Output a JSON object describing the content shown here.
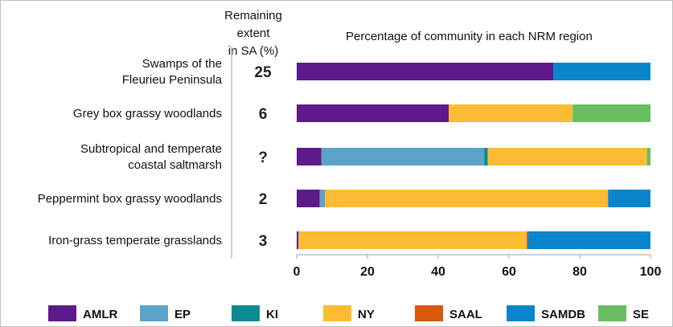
{
  "headers": {
    "remaining_line1": "Remaining extent",
    "remaining_line2": "in SA (%)",
    "percentage": "Percentage of community in each NRM region"
  },
  "chart_data": {
    "type": "bar",
    "orientation": "horizontal",
    "stacked": true,
    "categories": [
      [
        "Swamps of the",
        "Fleurieu Peninsula"
      ],
      [
        "Grey box grassy woodlands"
      ],
      [
        "Subtropical and temperate",
        "coastal saltmarsh"
      ],
      [
        "Peppermint box grassy woodlands"
      ],
      [
        "Iron-grass temperate grasslands"
      ]
    ],
    "remaining_extent": [
      "25",
      "6",
      "?",
      "2",
      "3"
    ],
    "series": [
      {
        "name": "AMLR",
        "color": "#5e1a8a",
        "values": [
          72.5,
          43,
          7,
          6.5,
          0.5
        ]
      },
      {
        "name": "EP",
        "color": "#5ba3c9",
        "values": [
          0,
          0,
          46,
          1.5,
          0
        ]
      },
      {
        "name": "KI",
        "color": "#0b8a93",
        "values": [
          0,
          0,
          1,
          0,
          0
        ]
      },
      {
        "name": "NY",
        "color": "#fbbc33",
        "values": [
          0,
          35,
          45,
          80,
          64.5
        ]
      },
      {
        "name": "SAAL",
        "color": "#d9590a",
        "values": [
          0,
          0,
          0,
          0,
          0.3
        ]
      },
      {
        "name": "SAMDB",
        "color": "#0a85cc",
        "values": [
          27.5,
          0,
          0,
          12,
          34.7
        ]
      },
      {
        "name": "SE",
        "color": "#69bd61",
        "values": [
          0,
          22,
          1,
          0,
          0
        ]
      }
    ],
    "xlim": [
      0,
      100
    ],
    "xticks": [
      "0",
      "20",
      "40",
      "60",
      "80",
      "100"
    ],
    "grid": false,
    "legend_position": "bottom"
  }
}
